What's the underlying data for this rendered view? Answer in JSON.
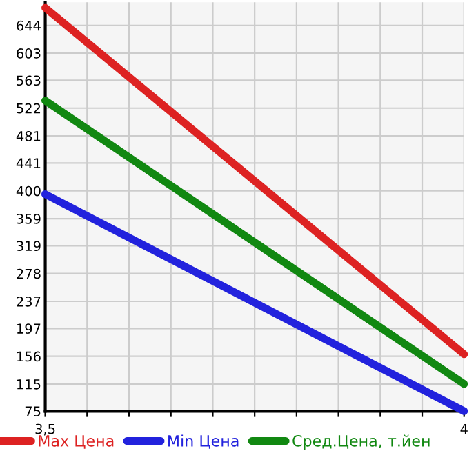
{
  "chart_data": {
    "type": "line",
    "x": [
      3.5,
      4
    ],
    "series": [
      {
        "name": "Max Цена",
        "color": "#dd2222",
        "values": [
          670,
          159
        ]
      },
      {
        "name": "Min Цена",
        "color": "#2222dd",
        "values": [
          395,
          75
        ]
      },
      {
        "name": "Сред.Цена, т.йен",
        "color": "#118811",
        "values": [
          533,
          115
        ]
      }
    ],
    "xlim": [
      3.5,
      4
    ],
    "ylim": [
      75,
      678
    ],
    "xticks": [
      {
        "value": 3.5,
        "label": "3,5"
      },
      {
        "value": 3.55,
        "label": null
      },
      {
        "value": 3.6,
        "label": null
      },
      {
        "value": 3.65,
        "label": null
      },
      {
        "value": 3.7,
        "label": null
      },
      {
        "value": 3.75,
        "label": null
      },
      {
        "value": 3.8,
        "label": null
      },
      {
        "value": 3.85,
        "label": null
      },
      {
        "value": 3.9,
        "label": null
      },
      {
        "value": 3.95,
        "label": null
      },
      4
    ],
    "yticks": [
      75,
      115,
      156,
      197,
      237,
      278,
      319,
      359,
      400,
      441,
      481,
      522,
      563,
      603,
      644
    ],
    "grid": true,
    "legend": "bottom",
    "marker": "none",
    "line_style": "solid"
  }
}
